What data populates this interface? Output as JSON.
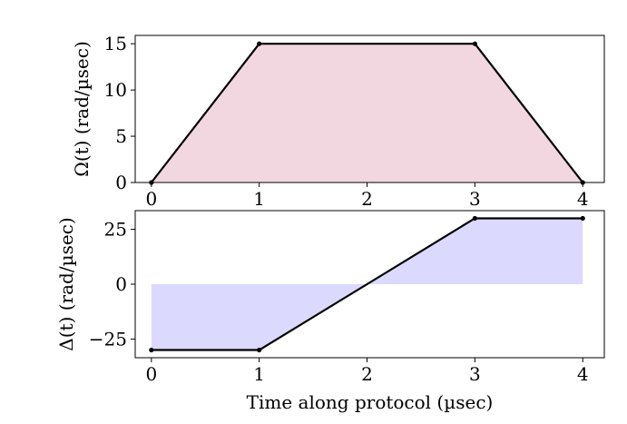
{
  "chart_data": [
    {
      "type": "area",
      "ylabel": "Ω(t) (rad/µsec)",
      "xlabel": "",
      "x": [
        0,
        1,
        3,
        4
      ],
      "y": [
        0,
        15,
        15,
        0
      ],
      "xlim": [
        -0.15,
        4.2
      ],
      "ylim": [
        0,
        15.9
      ],
      "xticks": [
        0,
        1,
        2,
        3,
        4
      ],
      "yticks": [
        0,
        5,
        10,
        15
      ],
      "fill_color": "#f2d7e1",
      "line_color": "#000000",
      "grid": false
    },
    {
      "type": "area",
      "ylabel": "Δ(t) (rad/µsec)",
      "xlabel": "Time along protocol (µsec)",
      "x": [
        0,
        1,
        3,
        4
      ],
      "y": [
        -30,
        -30,
        30,
        30
      ],
      "xlim": [
        -0.15,
        4.2
      ],
      "ylim": [
        -33.5,
        33.5
      ],
      "xticks": [
        0,
        1,
        2,
        3,
        4
      ],
      "yticks": [
        -25,
        0,
        25
      ],
      "fill_color": "#dcd9ff",
      "line_color": "#000000",
      "grid": false
    }
  ]
}
